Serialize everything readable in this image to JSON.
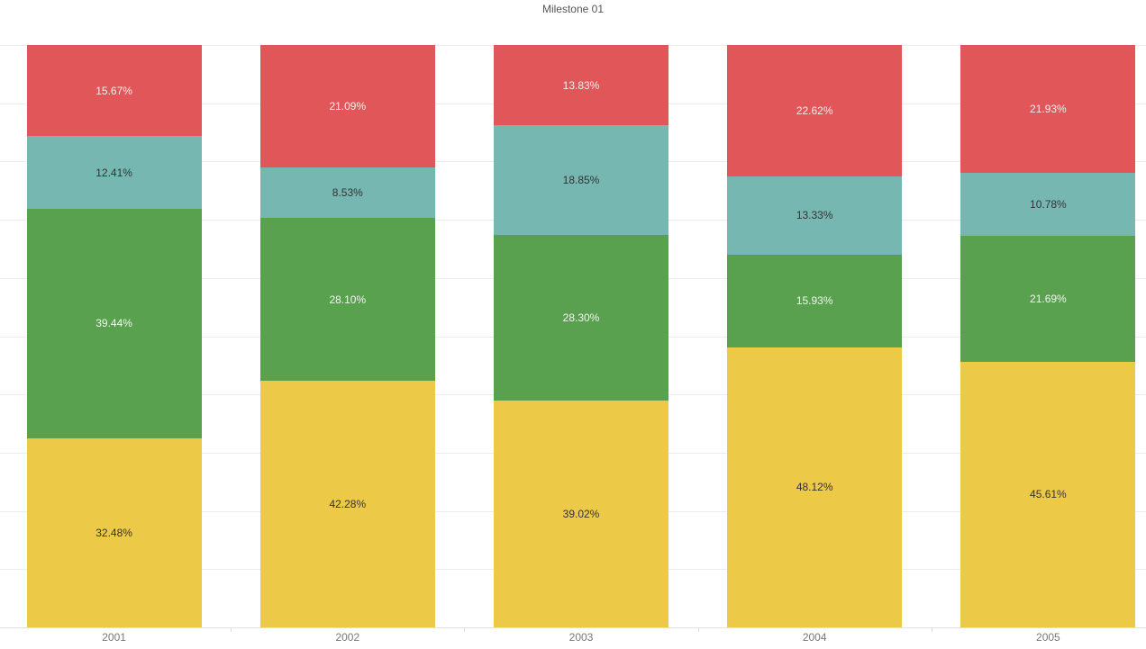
{
  "page": {
    "background": "#ffffff"
  },
  "chart_data": {
    "type": "bar",
    "variant": "stacked-100-percent-column",
    "title": "Milestone 01",
    "categories": [
      "2001",
      "2002",
      "2003",
      "2004",
      "2005"
    ],
    "stack_order": "top-to-bottom",
    "series": [
      {
        "name": "red",
        "color": "#E15759",
        "label_color": "#F6EDED",
        "values": [
          15.67,
          21.09,
          13.83,
          22.62,
          21.93
        ]
      },
      {
        "name": "teal",
        "color": "#76B7B2",
        "label_color": "#333333",
        "values": [
          12.41,
          8.53,
          18.85,
          13.33,
          10.78
        ]
      },
      {
        "name": "green",
        "color": "#59A14F",
        "label_color": "#F1F6EF",
        "values": [
          39.44,
          28.1,
          28.3,
          15.93,
          21.69
        ]
      },
      {
        "name": "yellow",
        "color": "#EDC948",
        "label_color": "#333333",
        "values": [
          32.48,
          42.28,
          39.02,
          48.12,
          45.61
        ]
      }
    ],
    "value_label_format": "0.00%",
    "ylim": [
      0,
      100
    ],
    "gridlines": {
      "horizontal": true,
      "interval_percent": 10,
      "color": "#ececec"
    },
    "legend": "none",
    "axis_styles": {
      "x_label_color": "#787878",
      "axis_line_color": "#e1e1e1",
      "title_color": "#555555"
    }
  }
}
